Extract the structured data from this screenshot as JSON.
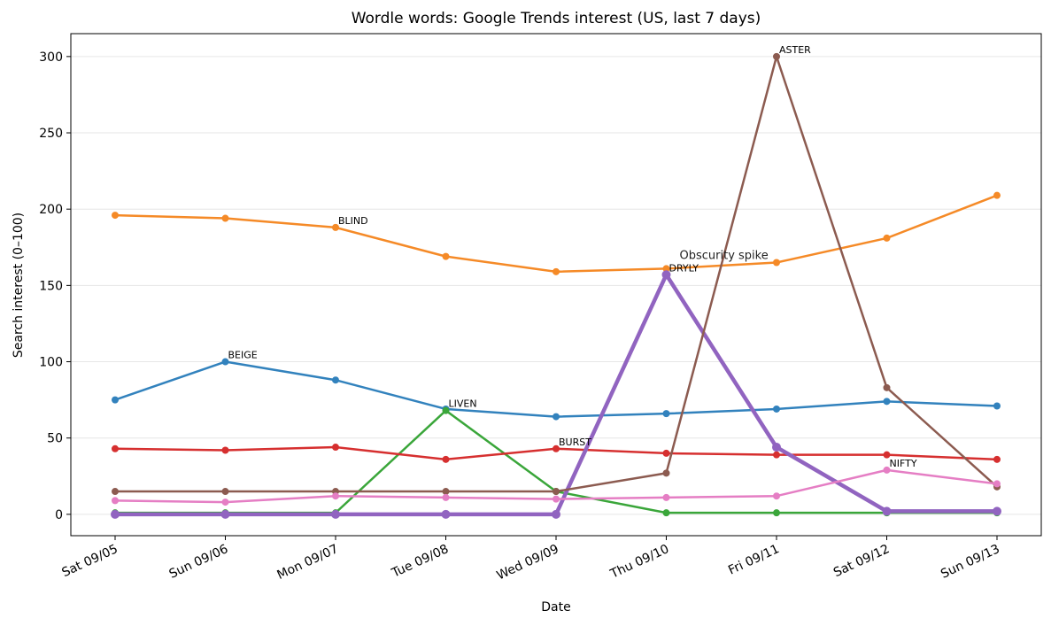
{
  "chart_data": {
    "type": "line",
    "title": "Wordle words: Google Trends interest (US, last 7 days)",
    "xlabel": "Date",
    "ylabel": "Search interest (0–100)",
    "categories": [
      "Sat 09/05",
      "Sun 09/06",
      "Mon 09/07",
      "Tue 09/08",
      "Wed 09/09",
      "Thu 09/10",
      "Fri 09/11",
      "Sat 09/12",
      "Sun 09/13"
    ],
    "yticks": [
      0,
      50,
      100,
      150,
      200,
      250,
      300
    ],
    "ylim": [
      -14,
      315
    ],
    "grid": "horizontal",
    "series": [
      {
        "name": "BEIGE",
        "color": "#3282bd",
        "values": [
          75,
          100,
          88,
          69,
          64,
          66,
          69,
          74,
          71
        ],
        "label_index": 1,
        "bold": false
      },
      {
        "name": "BLIND",
        "color": "#f58a27",
        "values": [
          196,
          194,
          188,
          169,
          159,
          161,
          165,
          181,
          209
        ],
        "label_index": 2,
        "bold": false
      },
      {
        "name": "LIVEN",
        "color": "#3aa63a",
        "values": [
          1,
          1,
          1,
          68,
          15,
          1,
          1,
          1,
          1
        ],
        "label_index": 3,
        "bold": false
      },
      {
        "name": "BURST",
        "color": "#d62f2f",
        "values": [
          43,
          42,
          44,
          36,
          43,
          40,
          39,
          39,
          36
        ],
        "label_index": 4,
        "bold": false
      },
      {
        "name": "DRYLY",
        "color": "#9164c0",
        "values": [
          0,
          0,
          0,
          0,
          0,
          157,
          44,
          2,
          2
        ],
        "label_index": 5,
        "bold": true
      },
      {
        "name": "ASTER",
        "color": "#8c5b50",
        "values": [
          15,
          15,
          15,
          15,
          15,
          27,
          300,
          83,
          18
        ],
        "label_index": 6,
        "bold": false
      },
      {
        "name": "NIFTY",
        "color": "#e57ec4",
        "values": [
          9,
          8,
          12,
          11,
          10,
          11,
          12,
          29,
          20
        ],
        "label_index": 7,
        "bold": false
      }
    ],
    "annotations": [
      {
        "text": "Obscurity spike",
        "x": "Thu 09/10",
        "y": 165
      }
    ]
  }
}
